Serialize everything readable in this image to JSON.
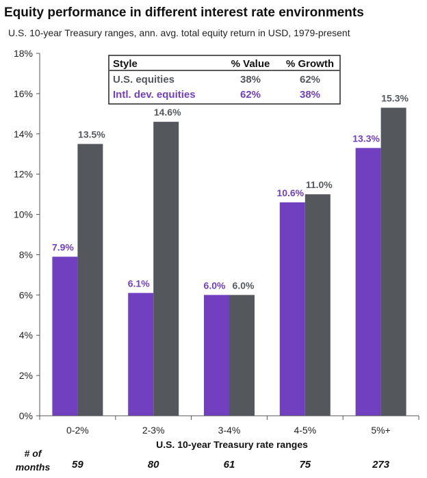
{
  "colors": {
    "value": "#7140C0",
    "growth": "#54585C",
    "axis": "#555555"
  },
  "chart_data": {
    "type": "bar",
    "title": "Equity performance in different interest rate environments",
    "subtitle": "U.S. 10-year Treasury ranges, ann. avg. total equity return in USD, 1979-present",
    "xlabel": "U.S. 10-year Treasury rate ranges",
    "ylabel": "",
    "ylim": [
      0,
      18
    ],
    "yticks": [
      0,
      2,
      4,
      6,
      8,
      10,
      12,
      14,
      16,
      18
    ],
    "ytick_labels": [
      "0%",
      "2%",
      "4%",
      "6%",
      "8%",
      "10%",
      "12%",
      "14%",
      "16%",
      "18%"
    ],
    "categories": [
      "0-2%",
      "2-3%",
      "3-4%",
      "4-5%",
      "5%+"
    ],
    "series": [
      {
        "values": [
          7.9,
          6.1,
          6.0,
          10.6,
          13.3
        ],
        "labels": [
          "7.9%",
          "6.1%",
          "6.0%",
          "10.6%",
          "13.3%"
        ]
      },
      {
        "values": [
          13.5,
          14.6,
          6.0,
          11.0,
          15.3
        ],
        "labels": [
          "13.5%",
          "14.6%",
          "6.0%",
          "11.0%",
          "15.3%"
        ]
      }
    ],
    "grid": false,
    "months": {
      "label_line1": "# of",
      "label_line2": "months",
      "values": [
        "59",
        "80",
        "61",
        "75",
        "273"
      ]
    },
    "style_table": {
      "headers": [
        "Style",
        "% Value",
        "% Growth"
      ],
      "rows": [
        {
          "style": "U.S. equities",
          "value": "38%",
          "growth": "62%"
        },
        {
          "style": "Intl. dev. equities",
          "value": "62%",
          "growth": "38%"
        }
      ]
    }
  }
}
